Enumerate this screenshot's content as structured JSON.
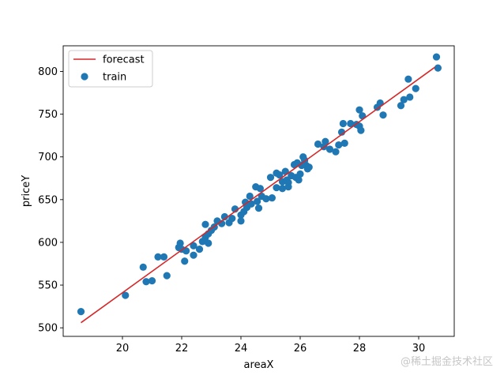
{
  "chart_data": {
    "type": "scatter",
    "title": "",
    "xlabel": "areaX",
    "ylabel": "priceY",
    "xlim": [
      18.0,
      31.2
    ],
    "ylim": [
      490,
      830
    ],
    "xticks": [
      20,
      22,
      24,
      26,
      28,
      30
    ],
    "yticks": [
      500,
      550,
      600,
      650,
      700,
      750,
      800
    ],
    "grid": false,
    "legend": {
      "placement": "top-left",
      "entries": [
        "forecast",
        "train"
      ]
    },
    "colors": {
      "train": "#1f77b4",
      "forecast": "#d62728"
    },
    "series": [
      {
        "name": "train",
        "type": "scatter",
        "points": [
          [
            18.6,
            519
          ],
          [
            20.1,
            538
          ],
          [
            20.7,
            571
          ],
          [
            20.8,
            554
          ],
          [
            21.0,
            555
          ],
          [
            21.2,
            583
          ],
          [
            21.4,
            583
          ],
          [
            21.5,
            561
          ],
          [
            21.9,
            594
          ],
          [
            21.95,
            599
          ],
          [
            22.0,
            592
          ],
          [
            22.1,
            578
          ],
          [
            22.15,
            590
          ],
          [
            22.4,
            585
          ],
          [
            22.4,
            596
          ],
          [
            22.6,
            592
          ],
          [
            22.7,
            601
          ],
          [
            22.8,
            606
          ],
          [
            22.8,
            621
          ],
          [
            22.9,
            599
          ],
          [
            22.9,
            610
          ],
          [
            23.0,
            614
          ],
          [
            23.1,
            618
          ],
          [
            23.2,
            625
          ],
          [
            23.35,
            622
          ],
          [
            23.45,
            630
          ],
          [
            23.6,
            623
          ],
          [
            23.7,
            628
          ],
          [
            23.8,
            639
          ],
          [
            24.0,
            632
          ],
          [
            24.0,
            625
          ],
          [
            24.1,
            636
          ],
          [
            24.15,
            647
          ],
          [
            24.2,
            641
          ],
          [
            24.3,
            654
          ],
          [
            24.35,
            645
          ],
          [
            24.5,
            665
          ],
          [
            24.55,
            648
          ],
          [
            24.6,
            640
          ],
          [
            24.65,
            663
          ],
          [
            24.7,
            654
          ],
          [
            24.85,
            651
          ],
          [
            25.0,
            676
          ],
          [
            25.05,
            652
          ],
          [
            25.2,
            664
          ],
          [
            25.2,
            681
          ],
          [
            25.3,
            679
          ],
          [
            25.4,
            671
          ],
          [
            25.4,
            663
          ],
          [
            25.5,
            683
          ],
          [
            25.55,
            673
          ],
          [
            25.6,
            665
          ],
          [
            25.6,
            670
          ],
          [
            25.7,
            678
          ],
          [
            25.8,
            691
          ],
          [
            25.85,
            676
          ],
          [
            25.9,
            693
          ],
          [
            25.95,
            673
          ],
          [
            26.0,
            680
          ],
          [
            26.05,
            690
          ],
          [
            26.1,
            700
          ],
          [
            26.15,
            696
          ],
          [
            26.2,
            690
          ],
          [
            26.25,
            686
          ],
          [
            26.3,
            688
          ],
          [
            26.6,
            715
          ],
          [
            26.8,
            712
          ],
          [
            26.85,
            718
          ],
          [
            27.0,
            709
          ],
          [
            27.2,
            706
          ],
          [
            27.3,
            714
          ],
          [
            27.4,
            729
          ],
          [
            27.45,
            739
          ],
          [
            27.5,
            716
          ],
          [
            27.7,
            739
          ],
          [
            27.9,
            738
          ],
          [
            28.0,
            755
          ],
          [
            28.0,
            736
          ],
          [
            28.05,
            731
          ],
          [
            28.1,
            748
          ],
          [
            28.6,
            758
          ],
          [
            28.7,
            763
          ],
          [
            28.8,
            749
          ],
          [
            29.4,
            760
          ],
          [
            29.5,
            767
          ],
          [
            29.65,
            791
          ],
          [
            29.7,
            770
          ],
          [
            29.9,
            780
          ],
          [
            30.6,
            817
          ],
          [
            30.65,
            804
          ]
        ]
      },
      {
        "name": "forecast",
        "type": "line",
        "points": [
          [
            18.6,
            506
          ],
          [
            30.55,
            805
          ]
        ]
      }
    ]
  },
  "watermark": "@稀土掘金技术社区"
}
